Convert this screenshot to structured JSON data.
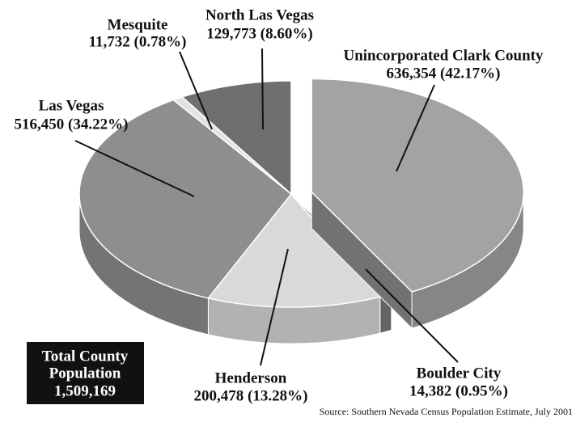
{
  "chart_data": {
    "type": "pie",
    "categories": [
      "Unincorporated Clark County",
      "Boulder City",
      "Henderson",
      "Las Vegas",
      "Mesquite",
      "North Las Vegas"
    ],
    "values": [
      636354,
      14382,
      200478,
      516450,
      11732,
      129773
    ],
    "value_labels": [
      "636,354 (42.17%)",
      "14,382 (0.95%)",
      "200,478 (13.28%)",
      "516,450 (34.22%)",
      "11,732 (0.78%)",
      "129,773 (8.60%)"
    ],
    "colors": [
      "#a3a3a3",
      "#7a7a7a",
      "#d9d9d9",
      "#8e8e8e",
      "#e2e2e2",
      "#6f6f6f"
    ],
    "explode": [
      true,
      false,
      false,
      false,
      false,
      false
    ],
    "annotations": [
      "Total County",
      "Population",
      "1,509,169"
    ],
    "source": "Source: Southern Nevada Census Population Estimate, July 2001"
  }
}
